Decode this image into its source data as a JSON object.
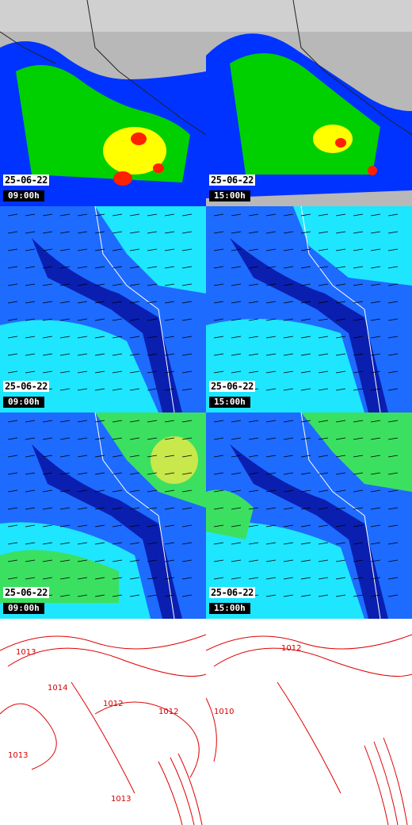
{
  "colors": {
    "cloud_gray": "#bdbdbd",
    "precip_blue": "#0033ff",
    "precip_green": "#00d000",
    "precip_yellow": "#ffff00",
    "precip_red": "#ff2000",
    "wind_darkblue": "#0a1fb0",
    "wind_blue": "#1e6bff",
    "wind_cyan": "#1ee6ff",
    "wind_green": "#3ce060",
    "isobar": "#e00000"
  },
  "panels": {
    "precip_left": {
      "date": "25-06-22",
      "time": "09:00h"
    },
    "precip_right": {
      "date": "25-06-22",
      "time": "15:00h"
    },
    "wind_left": {
      "date": "25-06-22",
      "time": "09:00h"
    },
    "wind_right": {
      "date": "25-06-22",
      "time": "15:00h"
    },
    "gust_left": {
      "date": "25-06-22",
      "time": "09:00h"
    },
    "gust_right": {
      "date": "25-06-22",
      "time": "15:00h"
    }
  },
  "isobar_labels": {
    "left": [
      "1013",
      "1014",
      "1012",
      "1012",
      "1013",
      "1013"
    ],
    "right": [
      "1012",
      "1010"
    ]
  }
}
